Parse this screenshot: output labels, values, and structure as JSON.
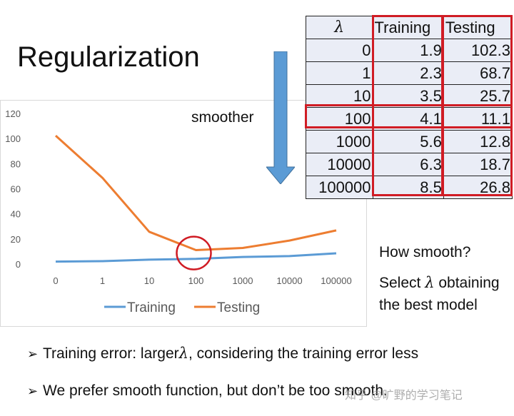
{
  "title": "Regularization",
  "arrow_label": "smoother",
  "table": {
    "headers": [
      "λ",
      "Training",
      "Testing"
    ],
    "rows": [
      [
        "0",
        "1.9",
        "102.3"
      ],
      [
        "1",
        "2.3",
        "68.7"
      ],
      [
        "10",
        "3.5",
        "25.7"
      ],
      [
        "100",
        "4.1",
        "11.1"
      ],
      [
        "1000",
        "5.6",
        "12.8"
      ],
      [
        "10000",
        "6.3",
        "18.7"
      ],
      [
        "100000",
        "8.5",
        "26.8"
      ]
    ],
    "highlight_row": 3
  },
  "notes": {
    "q": "How smooth?",
    "a_prefix": "Select ",
    "a_lambda": "λ",
    "a_suffix": " obtaining",
    "a_line2": "the best model"
  },
  "bullets": [
    {
      "prefix": "Training error: larger",
      "lambda": "λ",
      "suffix": ", considering the training error less"
    },
    {
      "text": "We prefer smooth function, but don’t be too smooth."
    }
  ],
  "watermark": "知乎 @旷野的学习笔记",
  "colors": {
    "training": "#5b9bd5",
    "testing": "#ed7d31",
    "highlight": "#d01c24",
    "arrow": "#5b9bd5"
  },
  "chart_data": {
    "type": "line",
    "categories": [
      "0",
      "1",
      "10",
      "100",
      "1000",
      "10000",
      "100000"
    ],
    "series": [
      {
        "name": "Training",
        "values": [
          1.9,
          2.3,
          3.5,
          4.1,
          5.6,
          6.3,
          8.5
        ]
      },
      {
        "name": "Testing",
        "values": [
          102.3,
          68.7,
          25.7,
          11.1,
          12.8,
          18.7,
          26.8
        ]
      }
    ],
    "yticks": [
      0,
      20,
      40,
      60,
      80,
      100,
      120
    ],
    "ylim": [
      0,
      120
    ],
    "grid": false,
    "legend": "bottom",
    "highlight_category": "100"
  }
}
